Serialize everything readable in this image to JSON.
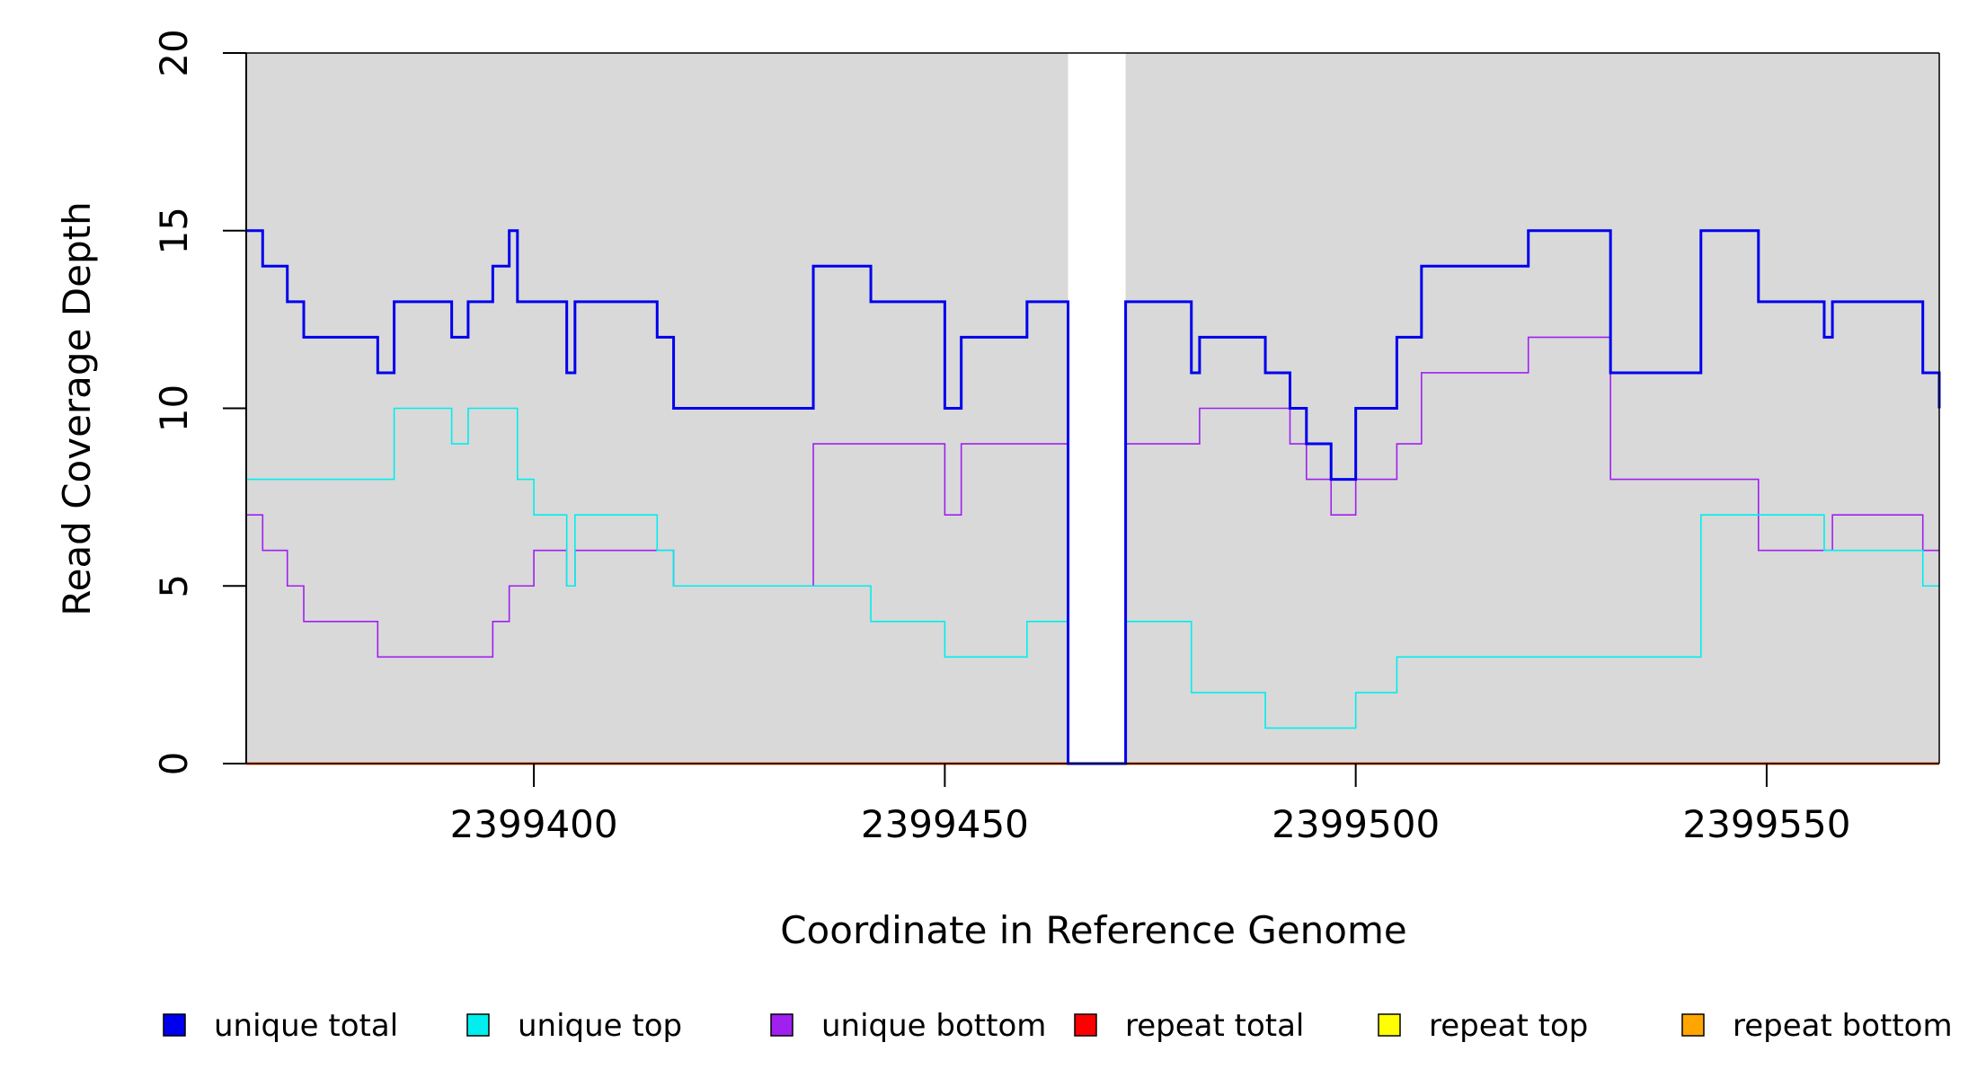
{
  "chart_data": {
    "type": "line",
    "xlabel": "Coordinate in Reference Genome",
    "ylabel": "Read Coverage Depth",
    "xlim": [
      2399365,
      2399571
    ],
    "ylim": [
      0,
      20
    ],
    "x_ticks": [
      2399400,
      2399450,
      2399500,
      2399550
    ],
    "y_ticks": [
      0,
      5,
      10,
      15,
      20
    ],
    "gap": [
      2399465,
      2399472
    ],
    "series": [
      {
        "name": "unique total",
        "color": "#0000ee",
        "points": [
          [
            2399365,
            15
          ],
          [
            2399367,
            14
          ],
          [
            2399370,
            13
          ],
          [
            2399372,
            12
          ],
          [
            2399381,
            11
          ],
          [
            2399383,
            13
          ],
          [
            2399390,
            12
          ],
          [
            2399392,
            13
          ],
          [
            2399395,
            14
          ],
          [
            2399397,
            15
          ],
          [
            2399398,
            13
          ],
          [
            2399404,
            11
          ],
          [
            2399405,
            13
          ],
          [
            2399415,
            12
          ],
          [
            2399417,
            10
          ],
          [
            2399434,
            14
          ],
          [
            2399441,
            13
          ],
          [
            2399450,
            10
          ],
          [
            2399452,
            12
          ],
          [
            2399460,
            13
          ],
          [
            2399465,
            0
          ],
          [
            2399472,
            13
          ],
          [
            2399480,
            11
          ],
          [
            2399481,
            12
          ],
          [
            2399489,
            11
          ],
          [
            2399492,
            10
          ],
          [
            2399494,
            9
          ],
          [
            2399497,
            8
          ],
          [
            2399500,
            10
          ],
          [
            2399505,
            12
          ],
          [
            2399508,
            14
          ],
          [
            2399521,
            15
          ],
          [
            2399531,
            11
          ],
          [
            2399542,
            15
          ],
          [
            2399549,
            13
          ],
          [
            2399557,
            12
          ],
          [
            2399558,
            13
          ],
          [
            2399569,
            11
          ],
          [
            2399571,
            10
          ]
        ]
      },
      {
        "name": "unique top",
        "color": "#00eeee",
        "points": [
          [
            2399365,
            8
          ],
          [
            2399383,
            10
          ],
          [
            2399390,
            9
          ],
          [
            2399392,
            10
          ],
          [
            2399398,
            8
          ],
          [
            2399400,
            7
          ],
          [
            2399404,
            5
          ],
          [
            2399405,
            7
          ],
          [
            2399415,
            6
          ],
          [
            2399417,
            5
          ],
          [
            2399441,
            4
          ],
          [
            2399450,
            3
          ],
          [
            2399460,
            4
          ],
          [
            2399465,
            0
          ],
          [
            2399472,
            4
          ],
          [
            2399480,
            2
          ],
          [
            2399489,
            1
          ],
          [
            2399500,
            2
          ],
          [
            2399505,
            3
          ],
          [
            2399542,
            7
          ],
          [
            2399557,
            6
          ],
          [
            2399569,
            5
          ]
        ]
      },
      {
        "name": "unique bottom",
        "color": "#a020f0",
        "points": [
          [
            2399365,
            7
          ],
          [
            2399367,
            6
          ],
          [
            2399370,
            5
          ],
          [
            2399372,
            4
          ],
          [
            2399381,
            3
          ],
          [
            2399395,
            4
          ],
          [
            2399397,
            5
          ],
          [
            2399400,
            6
          ],
          [
            2399404,
            5
          ],
          [
            2399405,
            6
          ],
          [
            2399417,
            5
          ],
          [
            2399434,
            9
          ],
          [
            2399450,
            7
          ],
          [
            2399452,
            9
          ],
          [
            2399465,
            0
          ],
          [
            2399472,
            9
          ],
          [
            2399481,
            10
          ],
          [
            2399492,
            9
          ],
          [
            2399494,
            8
          ],
          [
            2399497,
            7
          ],
          [
            2399500,
            8
          ],
          [
            2399505,
            9
          ],
          [
            2399508,
            11
          ],
          [
            2399521,
            12
          ],
          [
            2399531,
            8
          ],
          [
            2399549,
            6
          ],
          [
            2399558,
            7
          ],
          [
            2399569,
            6
          ]
        ]
      },
      {
        "name": "repeat total",
        "color": "#ff0000",
        "points": [
          [
            2399365,
            0
          ],
          [
            2399571,
            0
          ]
        ]
      },
      {
        "name": "repeat top",
        "color": "#ffff00",
        "points": [
          [
            2399365,
            0
          ],
          [
            2399571,
            0
          ]
        ]
      },
      {
        "name": "repeat bottom",
        "color": "#ffa500",
        "points": [
          [
            2399365,
            0
          ],
          [
            2399571,
            0
          ]
        ]
      }
    ],
    "legend_position": "bottom",
    "background": "#d9d9d9"
  }
}
